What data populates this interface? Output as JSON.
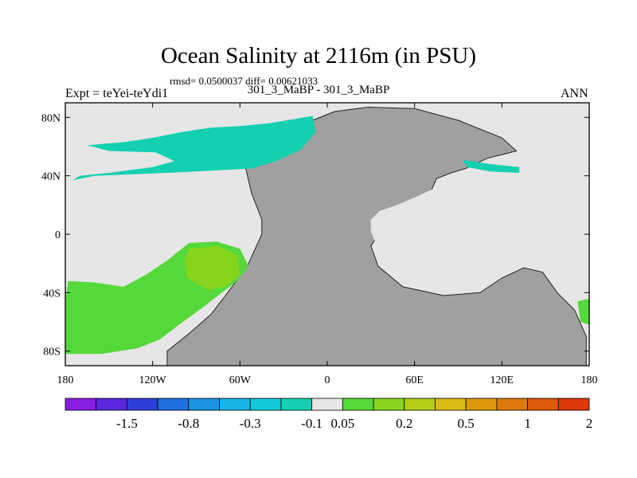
{
  "header": {
    "title": "Ocean Salinity at 2116m (in PSU)",
    "stats": "rmsd= 0.0500037 diff= 0.00621033",
    "subtitle": "301_3_MaBP - 301_3_MaBP",
    "left_label": "Expt = teYei-teYdi1",
    "right_label": "ANN"
  },
  "chart_data": {
    "type": "heatmap",
    "title": "Ocean Salinity at 2116m (in PSU)",
    "subtitle": "301_3_MaBP - 301_3_MaBP",
    "xlabel": "",
    "ylabel": "",
    "xlim": [
      -180,
      180
    ],
    "ylim": [
      -90,
      90
    ],
    "x_ticks": [
      {
        "value": -180,
        "label": "180"
      },
      {
        "value": -120,
        "label": "120W"
      },
      {
        "value": -60,
        "label": "60W"
      },
      {
        "value": 0,
        "label": "0"
      },
      {
        "value": 60,
        "label": "60E"
      },
      {
        "value": 120,
        "label": "120E"
      },
      {
        "value": 180,
        "label": "180"
      }
    ],
    "y_ticks": [
      {
        "value": 80,
        "label": "80N"
      },
      {
        "value": 40,
        "label": "40N"
      },
      {
        "value": 0,
        "label": "0"
      },
      {
        "value": -40,
        "label": "40S"
      },
      {
        "value": -80,
        "label": "80S"
      }
    ],
    "colorbar": {
      "colors": [
        "#8a1ee0",
        "#5a28dc",
        "#2e3fd6",
        "#1f6fe0",
        "#1b93e0",
        "#17b6e6",
        "#12c9d8",
        "#13d0b0",
        "#e6e6e6",
        "#55d93a",
        "#86d41c",
        "#b5cc16",
        "#d6bb10",
        "#dc9a0a",
        "#de7a0a",
        "#de5a0a",
        "#dc3a0a"
      ],
      "labels": [
        {
          "after_index": 1,
          "text": "-1.5"
        },
        {
          "after_index": 3,
          "text": "-0.8"
        },
        {
          "after_index": 5,
          "text": "-0.3"
        },
        {
          "after_index": 7,
          "text": "-0.1"
        },
        {
          "after_index": 8,
          "text": "0.05"
        },
        {
          "after_index": 10,
          "text": "0.2"
        },
        {
          "after_index": 12,
          "text": "0.5"
        },
        {
          "after_index": 14,
          "text": "1"
        },
        {
          "after_index": 16,
          "text": "2"
        }
      ]
    },
    "regions": [
      {
        "name": "land",
        "color": "#a0a0a0",
        "lonlat": [
          [
            -50,
            70
          ],
          [
            -30,
            74
          ],
          [
            -10,
            78
          ],
          [
            5,
            84
          ],
          [
            28,
            87
          ],
          [
            60,
            86
          ],
          [
            90,
            78
          ],
          [
            120,
            66
          ],
          [
            130,
            57
          ],
          [
            110,
            52
          ],
          [
            95,
            45
          ],
          [
            85,
            42
          ],
          [
            75,
            38
          ],
          [
            68,
            22
          ],
          [
            58,
            14
          ],
          [
            45,
            12
          ],
          [
            38,
            4
          ],
          [
            30,
            -8
          ],
          [
            35,
            -22
          ],
          [
            52,
            -36
          ],
          [
            80,
            -42
          ],
          [
            105,
            -40
          ],
          [
            120,
            -30
          ],
          [
            135,
            -23
          ],
          [
            148,
            -26
          ],
          [
            158,
            -40
          ],
          [
            170,
            -52
          ],
          [
            178,
            -70
          ],
          [
            178,
            -90
          ],
          [
            -110,
            -90
          ],
          [
            -110,
            -80
          ],
          [
            -95,
            -68
          ],
          [
            -80,
            -55
          ],
          [
            -70,
            -42
          ],
          [
            -55,
            -22
          ],
          [
            -45,
            0
          ],
          [
            -45,
            10
          ],
          [
            -52,
            28
          ],
          [
            -56,
            45
          ],
          [
            -50,
            70
          ]
        ]
      },
      {
        "name": "tethys-sea",
        "color": "#e6e6e6",
        "lonlat": [
          [
            30,
            10
          ],
          [
            36,
            16
          ],
          [
            48,
            20
          ],
          [
            62,
            26
          ],
          [
            75,
            32
          ],
          [
            88,
            36
          ],
          [
            96,
            33
          ],
          [
            104,
            26
          ],
          [
            108,
            14
          ],
          [
            104,
            -2
          ],
          [
            98,
            -14
          ],
          [
            84,
            -22
          ],
          [
            64,
            -24
          ],
          [
            46,
            -20
          ],
          [
            34,
            -8
          ],
          [
            30,
            2
          ],
          [
            30,
            10
          ]
        ]
      },
      {
        "name": "north-anomaly",
        "color": "#13d0b0",
        "lonlat": [
          [
            -165,
            61
          ],
          [
            -140,
            63
          ],
          [
            -120,
            66
          ],
          [
            -100,
            70
          ],
          [
            -80,
            73
          ],
          [
            -60,
            74
          ],
          [
            -40,
            76
          ],
          [
            -22,
            79
          ],
          [
            -10,
            81
          ],
          [
            -8,
            70
          ],
          [
            -18,
            58
          ],
          [
            -35,
            50
          ],
          [
            -52,
            45
          ],
          [
            -70,
            44
          ],
          [
            -110,
            42
          ],
          [
            -160,
            40
          ],
          [
            -175,
            37
          ],
          [
            -170,
            40
          ],
          [
            -150,
            42
          ],
          [
            -120,
            46
          ],
          [
            -105,
            50
          ],
          [
            -118,
            56
          ],
          [
            -150,
            57
          ],
          [
            -165,
            61
          ]
        ]
      },
      {
        "name": "asia-anomaly",
        "color": "#13d0b0",
        "lonlat": [
          [
            93,
            51
          ],
          [
            112,
            48
          ],
          [
            132,
            46
          ],
          [
            132,
            42
          ],
          [
            112,
            43
          ],
          [
            96,
            46
          ],
          [
            93,
            51
          ]
        ]
      },
      {
        "name": "green-southern",
        "color": "#55d93a",
        "lonlat": [
          [
            -178,
            -32
          ],
          [
            -160,
            -33
          ],
          [
            -140,
            -36
          ],
          [
            -125,
            -28
          ],
          [
            -110,
            -18
          ],
          [
            -95,
            -6
          ],
          [
            -76,
            -5
          ],
          [
            -60,
            -10
          ],
          [
            -54,
            -22
          ],
          [
            -62,
            -32
          ],
          [
            -75,
            -42
          ],
          [
            -88,
            -52
          ],
          [
            -102,
            -62
          ],
          [
            -115,
            -72
          ],
          [
            -130,
            -78
          ],
          [
            -155,
            -82
          ],
          [
            -180,
            -82
          ],
          [
            -180,
            -45
          ],
          [
            -178,
            -32
          ]
        ]
      },
      {
        "name": "green-core",
        "color": "#86d41c",
        "lonlat": [
          [
            -95,
            -10
          ],
          [
            -75,
            -8
          ],
          [
            -62,
            -14
          ],
          [
            -60,
            -28
          ],
          [
            -70,
            -36
          ],
          [
            -82,
            -38
          ],
          [
            -96,
            -30
          ],
          [
            -98,
            -18
          ],
          [
            -95,
            -10
          ]
        ]
      },
      {
        "name": "green-east",
        "color": "#55d93a",
        "lonlat": [
          [
            172,
            -46
          ],
          [
            180,
            -44
          ],
          [
            180,
            -62
          ],
          [
            174,
            -60
          ],
          [
            172,
            -46
          ]
        ]
      }
    ]
  }
}
